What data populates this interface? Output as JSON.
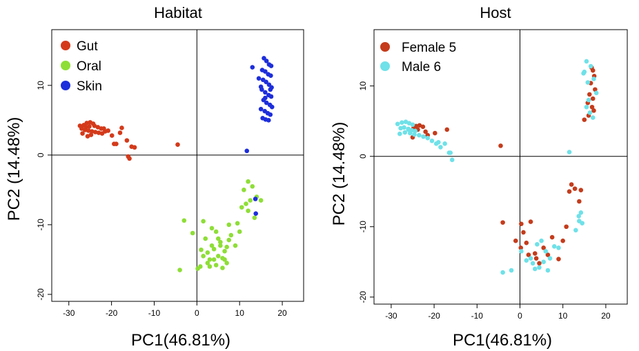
{
  "chart_data": [
    {
      "type": "scatter",
      "title": "Habitat",
      "xlabel": "PC1(46.81%)",
      "ylabel": "PC2 (14.48%)",
      "xlim": [
        -34,
        25
      ],
      "ylim": [
        -21,
        18
      ],
      "xticks": [
        -30,
        -20,
        -10,
        0,
        10,
        20
      ],
      "yticks": [
        -20,
        -10,
        0,
        10
      ],
      "reference_lines": {
        "x": 0,
        "y": 0
      },
      "grid": false,
      "legend_position": "top-left",
      "series": [
        {
          "name": "Gut",
          "color": "#d43a1a",
          "x": [
            -26.5,
            -25.8,
            -25.0,
            -24.3,
            -26.0,
            -25.2,
            -24.0,
            -23.2,
            -22.4,
            -21.8,
            -27.0,
            -26.2,
            -25.4,
            -24.6,
            -23.8,
            -23.0,
            -22.2,
            -21.5,
            -20.8,
            -19.9,
            -18.9,
            -17.6,
            -16.4,
            -15.3,
            -14.6,
            -16.1,
            -15.8,
            -19.4,
            -18.0,
            -25.6,
            -27.4,
            -24.8,
            -26.8,
            -4.5
          ],
          "y": [
            4.3,
            4.6,
            4.7,
            4.5,
            4.0,
            4.1,
            4.2,
            4.0,
            3.8,
            3.8,
            3.8,
            3.6,
            3.5,
            3.4,
            3.3,
            3.2,
            3.1,
            3.4,
            3.5,
            2.8,
            1.6,
            3.9,
            2.1,
            1.2,
            1.1,
            -0.2,
            -0.5,
            1.6,
            3.2,
            2.7,
            4.2,
            2.9,
            3.1,
            1.5
          ]
        },
        {
          "name": "Oral",
          "color": "#8ede37",
          "x": [
            -4.0,
            -3.0,
            0.2,
            1.0,
            1.5,
            2.0,
            2.5,
            3.0,
            3.5,
            4.0,
            4.5,
            5.0,
            5.5,
            6.0,
            6.5,
            7.0,
            7.5,
            3.0,
            4.0,
            5.0,
            6.0,
            7.0,
            8.0,
            5.5,
            6.5,
            7.5,
            4.5,
            3.5,
            2.5,
            1.5,
            0.8,
            9.0,
            9.5,
            10.0,
            10.5,
            11.0,
            11.5,
            12.0,
            12.5,
            13.0,
            14.0,
            15.0,
            13.5,
            12.0,
            -1.0
          ],
          "y": [
            -16.5,
            -9.4,
            -16.3,
            -13.6,
            -9.5,
            -12.0,
            -14.0,
            -16.0,
            -13.0,
            -15.0,
            -11.0,
            -14.5,
            -12.5,
            -16.2,
            -13.8,
            -15.5,
            -12.2,
            -15.0,
            -13.5,
            -12.0,
            -14.8,
            -13.2,
            -11.5,
            -13.0,
            -15.0,
            -10.0,
            -15.8,
            -10.5,
            -15.5,
            -14.5,
            -16.0,
            -13.0,
            -9.8,
            -11.0,
            -7.5,
            -5.0,
            -7.0,
            -3.8,
            -6.5,
            -4.5,
            -6.0,
            -6.5,
            -9.0,
            -8.0,
            -11.2
          ]
        },
        {
          "name": "Skin",
          "color": "#1d2edb",
          "x": [
            15.7,
            16.3,
            16.9,
            17.4,
            15.3,
            16.0,
            16.7,
            17.3,
            15.5,
            16.2,
            16.9,
            17.5,
            15.2,
            16.0,
            16.8,
            17.4,
            15.6,
            16.3,
            17.1,
            17.6,
            15.0,
            15.9,
            16.6,
            17.2,
            15.4,
            16.1,
            16.8,
            13.0,
            14.5,
            15.0,
            16.0,
            17.2,
            11.7,
            13.7,
            13.8
          ],
          "y": [
            13.9,
            13.5,
            13.0,
            12.8,
            12.2,
            12.0,
            11.6,
            11.4,
            10.8,
            10.5,
            10.1,
            9.7,
            9.4,
            9.0,
            8.6,
            8.4,
            7.9,
            7.5,
            7.2,
            6.9,
            6.6,
            6.3,
            6.0,
            5.8,
            5.3,
            5.1,
            5.0,
            12.6,
            11.0,
            9.8,
            8.2,
            9.4,
            0.6,
            -6.3,
            -8.4
          ]
        }
      ]
    },
    {
      "type": "scatter",
      "title": "Host",
      "xlabel": "PC1(46.81%)",
      "ylabel": "PC2 (14.48%)",
      "xlim": [
        -34,
        25
      ],
      "ylim": [
        -21,
        18
      ],
      "xticks": [
        -30,
        -20,
        -10,
        0,
        10,
        20
      ],
      "yticks": [
        -20,
        -10,
        0,
        10
      ],
      "reference_lines": {
        "x": 0,
        "y": 0
      },
      "grid": false,
      "legend_position": "top-left",
      "series": [
        {
          "name": "Female 5",
          "color": "#c43c1c",
          "x": [
            -24.2,
            -23.4,
            -22.6,
            -24.8,
            -23.8,
            -22.0,
            -21.5,
            -19.8,
            -17.0,
            -25.0,
            -4.5,
            -4.0,
            0.3,
            0.8,
            1.5,
            2.5,
            3.5,
            4.5,
            5.5,
            6.5,
            7.5,
            9.0,
            10.0,
            10.8,
            11.5,
            12.0,
            12.8,
            13.8,
            14.2,
            0.2,
            -1.0,
            2.0,
            3.8,
            16.7,
            17.0,
            17.3,
            16.5,
            17.5,
            16.2,
            17.0,
            15.8,
            16.8,
            17.2,
            16.0,
            15.0
          ],
          "y": [
            4.3,
            4.4,
            4.2,
            4.0,
            3.8,
            3.5,
            3.0,
            3.3,
            3.8,
            2.7,
            1.5,
            -9.4,
            -9.6,
            -10.8,
            -12.3,
            -9.3,
            -13.8,
            -15.2,
            -13.0,
            -14.0,
            -11.5,
            -14.6,
            -12.0,
            -10.0,
            -5.0,
            -4.0,
            -4.6,
            -6.4,
            -4.8,
            -13.0,
            -12.0,
            -14.0,
            -14.5,
            12.6,
            12.2,
            11.4,
            10.4,
            9.5,
            8.8,
            8.2,
            7.6,
            7.0,
            6.5,
            5.8,
            5.2
          ]
        },
        {
          "name": "Male 6",
          "color": "#6fe1e8",
          "x": [
            -28.5,
            -27.5,
            -26.6,
            -25.8,
            -25.0,
            -27.8,
            -27.0,
            -26.0,
            -25.2,
            -24.4,
            -28.0,
            -26.8,
            -25.6,
            -24.6,
            -23.5,
            -22.5,
            -21.5,
            -20.5,
            -19.5,
            -18.5,
            -17.5,
            -16.5,
            -15.8,
            -19.0,
            -16.2,
            -26.0,
            -4.0,
            -2.0,
            0.3,
            1.5,
            3.0,
            4.0,
            5.0,
            6.0,
            7.0,
            8.0,
            9.0,
            4.5,
            5.5,
            3.5,
            2.5,
            6.5,
            11.5,
            13.7,
            13.8,
            14.2,
            14.5,
            13.0,
            15.0,
            15.5,
            16.5,
            17.2,
            14.8,
            15.8,
            17.8,
            16.0,
            15.5,
            16.3,
            17.0
          ],
          "y": [
            4.6,
            4.8,
            4.9,
            4.7,
            4.5,
            4.0,
            4.1,
            3.9,
            3.7,
            3.6,
            3.2,
            3.4,
            3.3,
            3.1,
            3.0,
            2.8,
            2.6,
            2.2,
            1.8,
            1.3,
            1.8,
            0.5,
            -0.5,
            2.0,
            0.5,
            3.8,
            -16.5,
            -16.2,
            -13.5,
            -14.8,
            -15.2,
            -12.5,
            -12.0,
            -13.5,
            -14.5,
            -12.8,
            -13.0,
            -15.8,
            -15.0,
            -16.0,
            -14.5,
            -16.2,
            0.6,
            -8.5,
            -9.2,
            -8.0,
            -9.5,
            -10.5,
            12.0,
            13.5,
            12.8,
            11.0,
            11.8,
            10.5,
            9.0,
            8.0,
            7.0,
            6.2,
            5.5
          ]
        }
      ]
    }
  ]
}
